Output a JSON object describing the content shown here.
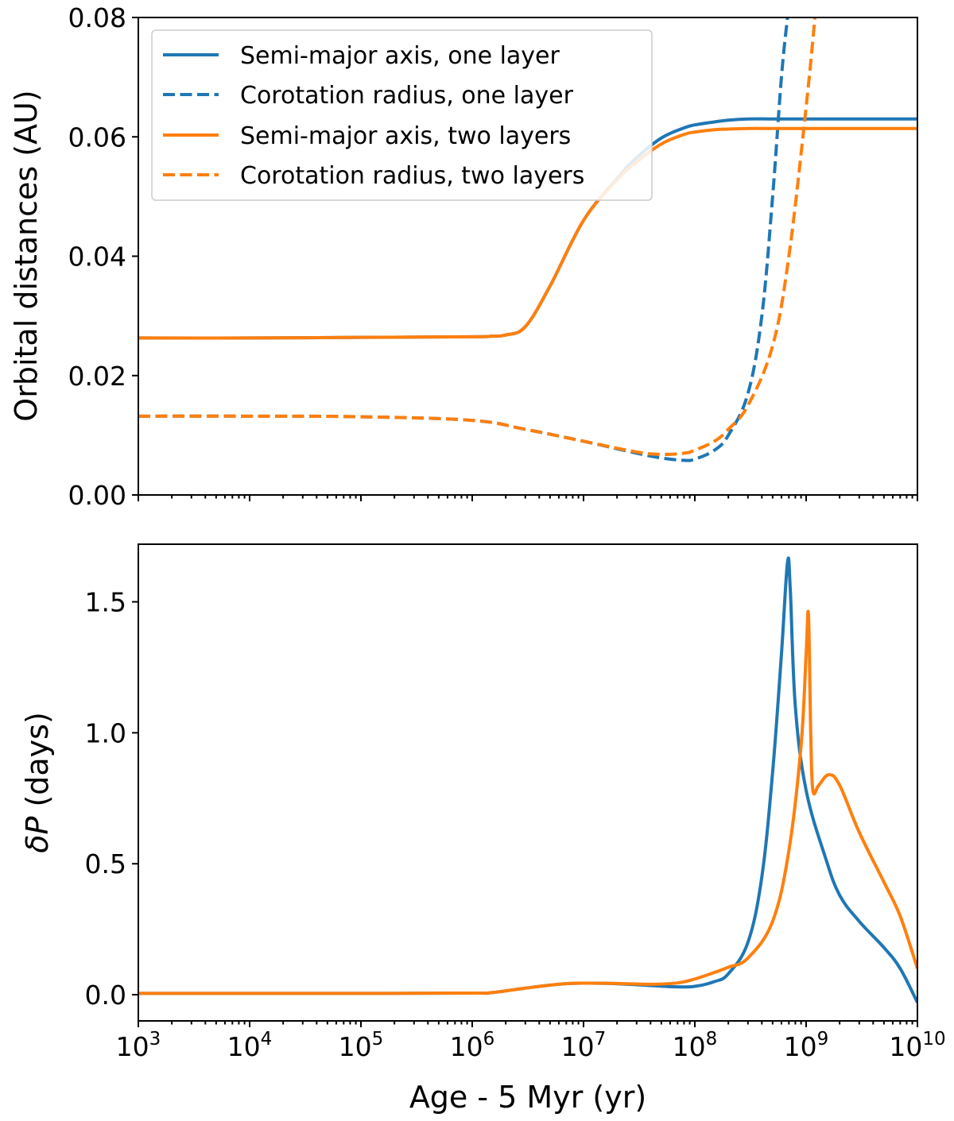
{
  "chart_data": [
    {
      "type": "line",
      "id": "top",
      "xscale": "log",
      "xlim": [
        1000,
        10000000000
      ],
      "ylim": [
        0,
        0.08
      ],
      "ylabel": "Orbital distances (AU)",
      "xlabel": "",
      "xtick_labels_visible": false,
      "yticks": [
        0.0,
        0.02,
        0.04,
        0.06,
        0.08
      ],
      "ytick_labels": [
        "0.00",
        "0.02",
        "0.04",
        "0.06",
        "0.08"
      ],
      "legend": {
        "placement": "upper-left",
        "entries": [
          "Semi-major axis, one layer",
          "Corotation radius, one layer",
          "Semi-major axis, two layers",
          "Corotation radius, two layers"
        ]
      },
      "series": [
        {
          "name": "Semi-major axis, one layer",
          "color": "#1f77b4",
          "style": "solid",
          "x": [
            1000,
            10000,
            100000,
            1000000,
            1500000,
            2000000,
            3000000,
            5000000,
            10000000,
            20000000,
            30000000,
            50000000,
            80000000,
            100000000,
            150000000,
            200000000,
            300000000,
            500000000,
            1000000000,
            10000000000
          ],
          "y": [
            0.0263,
            0.0263,
            0.0264,
            0.0265,
            0.0266,
            0.0268,
            0.0282,
            0.035,
            0.046,
            0.053,
            0.0565,
            0.0598,
            0.0615,
            0.062,
            0.0625,
            0.0628,
            0.063,
            0.063,
            0.063,
            0.063
          ]
        },
        {
          "name": "Corotation radius, one layer",
          "color": "#1f77b4",
          "style": "dashed",
          "x": [
            1000,
            10000,
            100000,
            1000000,
            3000000,
            10000000,
            30000000,
            50000000,
            80000000,
            100000000,
            150000000,
            200000000,
            300000000,
            400000000,
            500000000,
            600000000,
            680000000
          ],
          "y": [
            0.0132,
            0.0132,
            0.0131,
            0.0125,
            0.011,
            0.009,
            0.007,
            0.0062,
            0.0058,
            0.006,
            0.0075,
            0.01,
            0.017,
            0.03,
            0.05,
            0.07,
            0.08
          ]
        },
        {
          "name": "Semi-major axis, two layers",
          "color": "#ff7f0e",
          "style": "solid",
          "x": [
            1000,
            10000,
            100000,
            1000000,
            1500000,
            2000000,
            3000000,
            5000000,
            10000000,
            20000000,
            30000000,
            50000000,
            80000000,
            100000000,
            150000000,
            200000000,
            300000000,
            500000000,
            1000000000,
            10000000000
          ],
          "y": [
            0.0263,
            0.0263,
            0.0264,
            0.0265,
            0.0266,
            0.0268,
            0.0282,
            0.035,
            0.046,
            0.0528,
            0.0558,
            0.0588,
            0.0604,
            0.0608,
            0.0612,
            0.0613,
            0.0614,
            0.0614,
            0.0614,
            0.0614
          ]
        },
        {
          "name": "Corotation radius, two layers",
          "color": "#ff7f0e",
          "style": "dashed",
          "x": [
            1000,
            10000,
            100000,
            1000000,
            3000000,
            10000000,
            30000000,
            50000000,
            80000000,
            100000000,
            150000000,
            200000000,
            300000000,
            500000000,
            700000000,
            1000000000,
            1200000000
          ],
          "y": [
            0.0132,
            0.0132,
            0.0131,
            0.0125,
            0.011,
            0.009,
            0.0072,
            0.0068,
            0.007,
            0.0075,
            0.009,
            0.011,
            0.015,
            0.025,
            0.04,
            0.065,
            0.08
          ]
        }
      ]
    },
    {
      "type": "line",
      "id": "bottom",
      "xscale": "log",
      "xlim": [
        1000,
        10000000000
      ],
      "ylim": [
        -0.1,
        1.72
      ],
      "ylabel_prefix": "δP",
      "ylabel_suffix": " (days)",
      "xlabel": "Age - 5 Myr (yr)",
      "yticks": [
        0.0,
        0.5,
        1.0,
        1.5
      ],
      "ytick_labels": [
        "0.0",
        "0.5",
        "1.0",
        "1.5"
      ],
      "xticks": [
        1000,
        10000,
        100000,
        1000000,
        10000000,
        100000000,
        1000000000,
        10000000000
      ],
      "xtick_labels": [
        {
          "base": "10",
          "exp": "3"
        },
        {
          "base": "10",
          "exp": "4"
        },
        {
          "base": "10",
          "exp": "5"
        },
        {
          "base": "10",
          "exp": "6"
        },
        {
          "base": "10",
          "exp": "7"
        },
        {
          "base": "10",
          "exp": "8"
        },
        {
          "base": "10",
          "exp": "9"
        },
        {
          "base": "10",
          "exp": "10"
        }
      ],
      "series": [
        {
          "name": "Semi-major axis, one layer",
          "color": "#1f77b4",
          "style": "solid",
          "x": [
            1000,
            10000,
            100000,
            1000000,
            1500000,
            3000000,
            6000000,
            10000000,
            20000000,
            40000000,
            70000000,
            100000000,
            150000000,
            200000000,
            300000000,
            400000000,
            500000000,
            600000000,
            680000000,
            720000000,
            800000000,
            1000000000,
            1500000000,
            2000000000,
            3000000000,
            5000000000,
            7000000000,
            10000000000
          ],
          "y": [
            0.005,
            0.005,
            0.005,
            0.006,
            0.008,
            0.025,
            0.04,
            0.044,
            0.042,
            0.035,
            0.03,
            0.032,
            0.05,
            0.08,
            0.2,
            0.45,
            0.85,
            1.3,
            1.65,
            1.55,
            1.1,
            0.78,
            0.52,
            0.38,
            0.28,
            0.18,
            0.1,
            -0.03
          ]
        },
        {
          "name": "Semi-major axis, two layers",
          "color": "#ff7f0e",
          "style": "solid",
          "x": [
            1000,
            10000,
            100000,
            1000000,
            1500000,
            3000000,
            6000000,
            10000000,
            20000000,
            40000000,
            70000000,
            100000000,
            150000000,
            200000000,
            300000000,
            500000000,
            700000000,
            900000000,
            1000000000,
            1050000000,
            1100000000,
            1150000000,
            1300000000,
            1600000000,
            2000000000,
            3000000000,
            5000000000,
            7000000000,
            10000000000
          ],
          "y": [
            0.005,
            0.005,
            0.005,
            0.006,
            0.008,
            0.025,
            0.04,
            0.044,
            0.043,
            0.04,
            0.045,
            0.06,
            0.085,
            0.105,
            0.14,
            0.28,
            0.55,
            0.95,
            1.3,
            1.45,
            1.0,
            0.78,
            0.8,
            0.84,
            0.8,
            0.62,
            0.43,
            0.3,
            0.1
          ]
        }
      ]
    }
  ]
}
